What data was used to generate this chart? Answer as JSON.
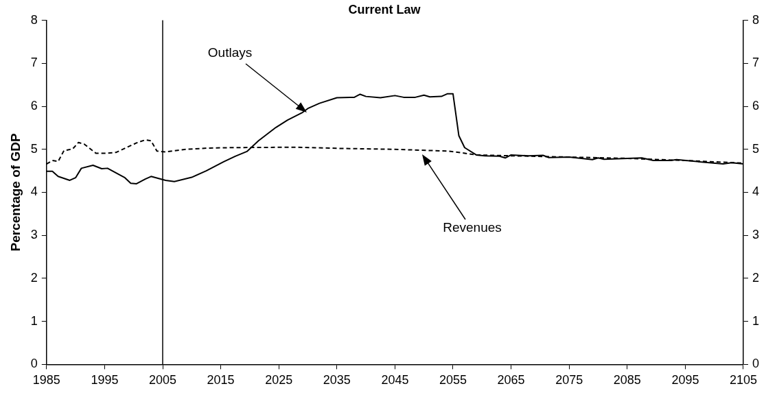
{
  "chart_data": {
    "type": "line",
    "title": "Current Law",
    "ylabel": "Percentage of GDP",
    "xlim": [
      1985,
      2105
    ],
    "xticks": [
      1985,
      1995,
      2005,
      2015,
      2025,
      2035,
      2045,
      2055,
      2065,
      2075,
      2085,
      2095,
      2105
    ],
    "ylim": [
      0,
      8
    ],
    "yticks": [
      0,
      1,
      2,
      3,
      4,
      5,
      6,
      7,
      8
    ],
    "y2lim": [
      0,
      8
    ],
    "y2ticks": [
      0,
      1,
      2,
      3,
      4,
      5,
      6,
      7,
      8
    ],
    "grid": false,
    "legend": false,
    "marker": "none",
    "ref_lines": [
      {
        "axis": "x",
        "value": 2005,
        "color": "#000000"
      }
    ],
    "annotations": [
      "Outlays",
      "Revenues"
    ],
    "series": [
      {
        "color": "#000000",
        "line_style": "solid",
        "x": [
          1985,
          1986,
          1987,
          1989,
          1990,
          1991,
          1993,
          1994.5,
          1995.5,
          1998.5,
          1999.5,
          2000.5,
          2002,
          2003,
          2005.5,
          2007,
          2010,
          2012.5,
          2015.5,
          2017.5,
          2019.5,
          2021.5,
          2024.5,
          2026.5,
          2029,
          2030,
          2032,
          2035,
          2038,
          2039,
          2040,
          2042.5,
          2045,
          2046.5,
          2048.5,
          2050,
          2051,
          2053,
          2054,
          2055,
          2056,
          2057,
          2059,
          2060.5,
          2063,
          2064,
          2065,
          2068,
          2070.5,
          2071.5,
          2075,
          2079,
          2080,
          2081,
          2087.5,
          2089.5,
          2092.5,
          2093.5,
          2101.5,
          2103,
          2105
        ],
        "values": [
          4.49,
          4.49,
          4.37,
          4.28,
          4.34,
          4.56,
          4.63,
          4.55,
          4.56,
          4.34,
          4.21,
          4.2,
          4.31,
          4.37,
          4.28,
          4.25,
          4.35,
          4.5,
          4.71,
          4.84,
          4.95,
          5.2,
          5.51,
          5.68,
          5.85,
          5.95,
          6.07,
          6.2,
          6.21,
          6.28,
          6.23,
          6.2,
          6.25,
          6.21,
          6.21,
          6.26,
          6.22,
          6.23,
          6.29,
          6.29,
          5.32,
          5.04,
          4.87,
          4.85,
          4.84,
          4.8,
          4.87,
          4.85,
          4.86,
          4.81,
          4.82,
          4.76,
          4.8,
          4.77,
          4.8,
          4.74,
          4.74,
          4.76,
          4.66,
          4.69,
          4.66
        ]
      },
      {
        "color": "#000000",
        "line_style": "dashed",
        "x": [
          1985,
          1986,
          1987,
          1988,
          1989.5,
          1990.5,
          1991.5,
          1993.5,
          1995.5,
          1997,
          2000.5,
          2002,
          2003,
          2004,
          2005.5,
          2009,
          2013,
          2017,
          2028,
          2036,
          2045,
          2054,
          2056,
          2059,
          2065,
          2075,
          2085,
          2095,
          2105
        ],
        "values": [
          4.66,
          4.74,
          4.72,
          4.97,
          5.01,
          5.16,
          5.12,
          4.91,
          4.91,
          4.93,
          5.15,
          5.22,
          5.2,
          4.96,
          4.94,
          5.0,
          5.03,
          5.04,
          5.05,
          5.02,
          5.0,
          4.96,
          4.93,
          4.87,
          4.85,
          4.82,
          4.79,
          4.74,
          4.68
        ]
      }
    ]
  }
}
